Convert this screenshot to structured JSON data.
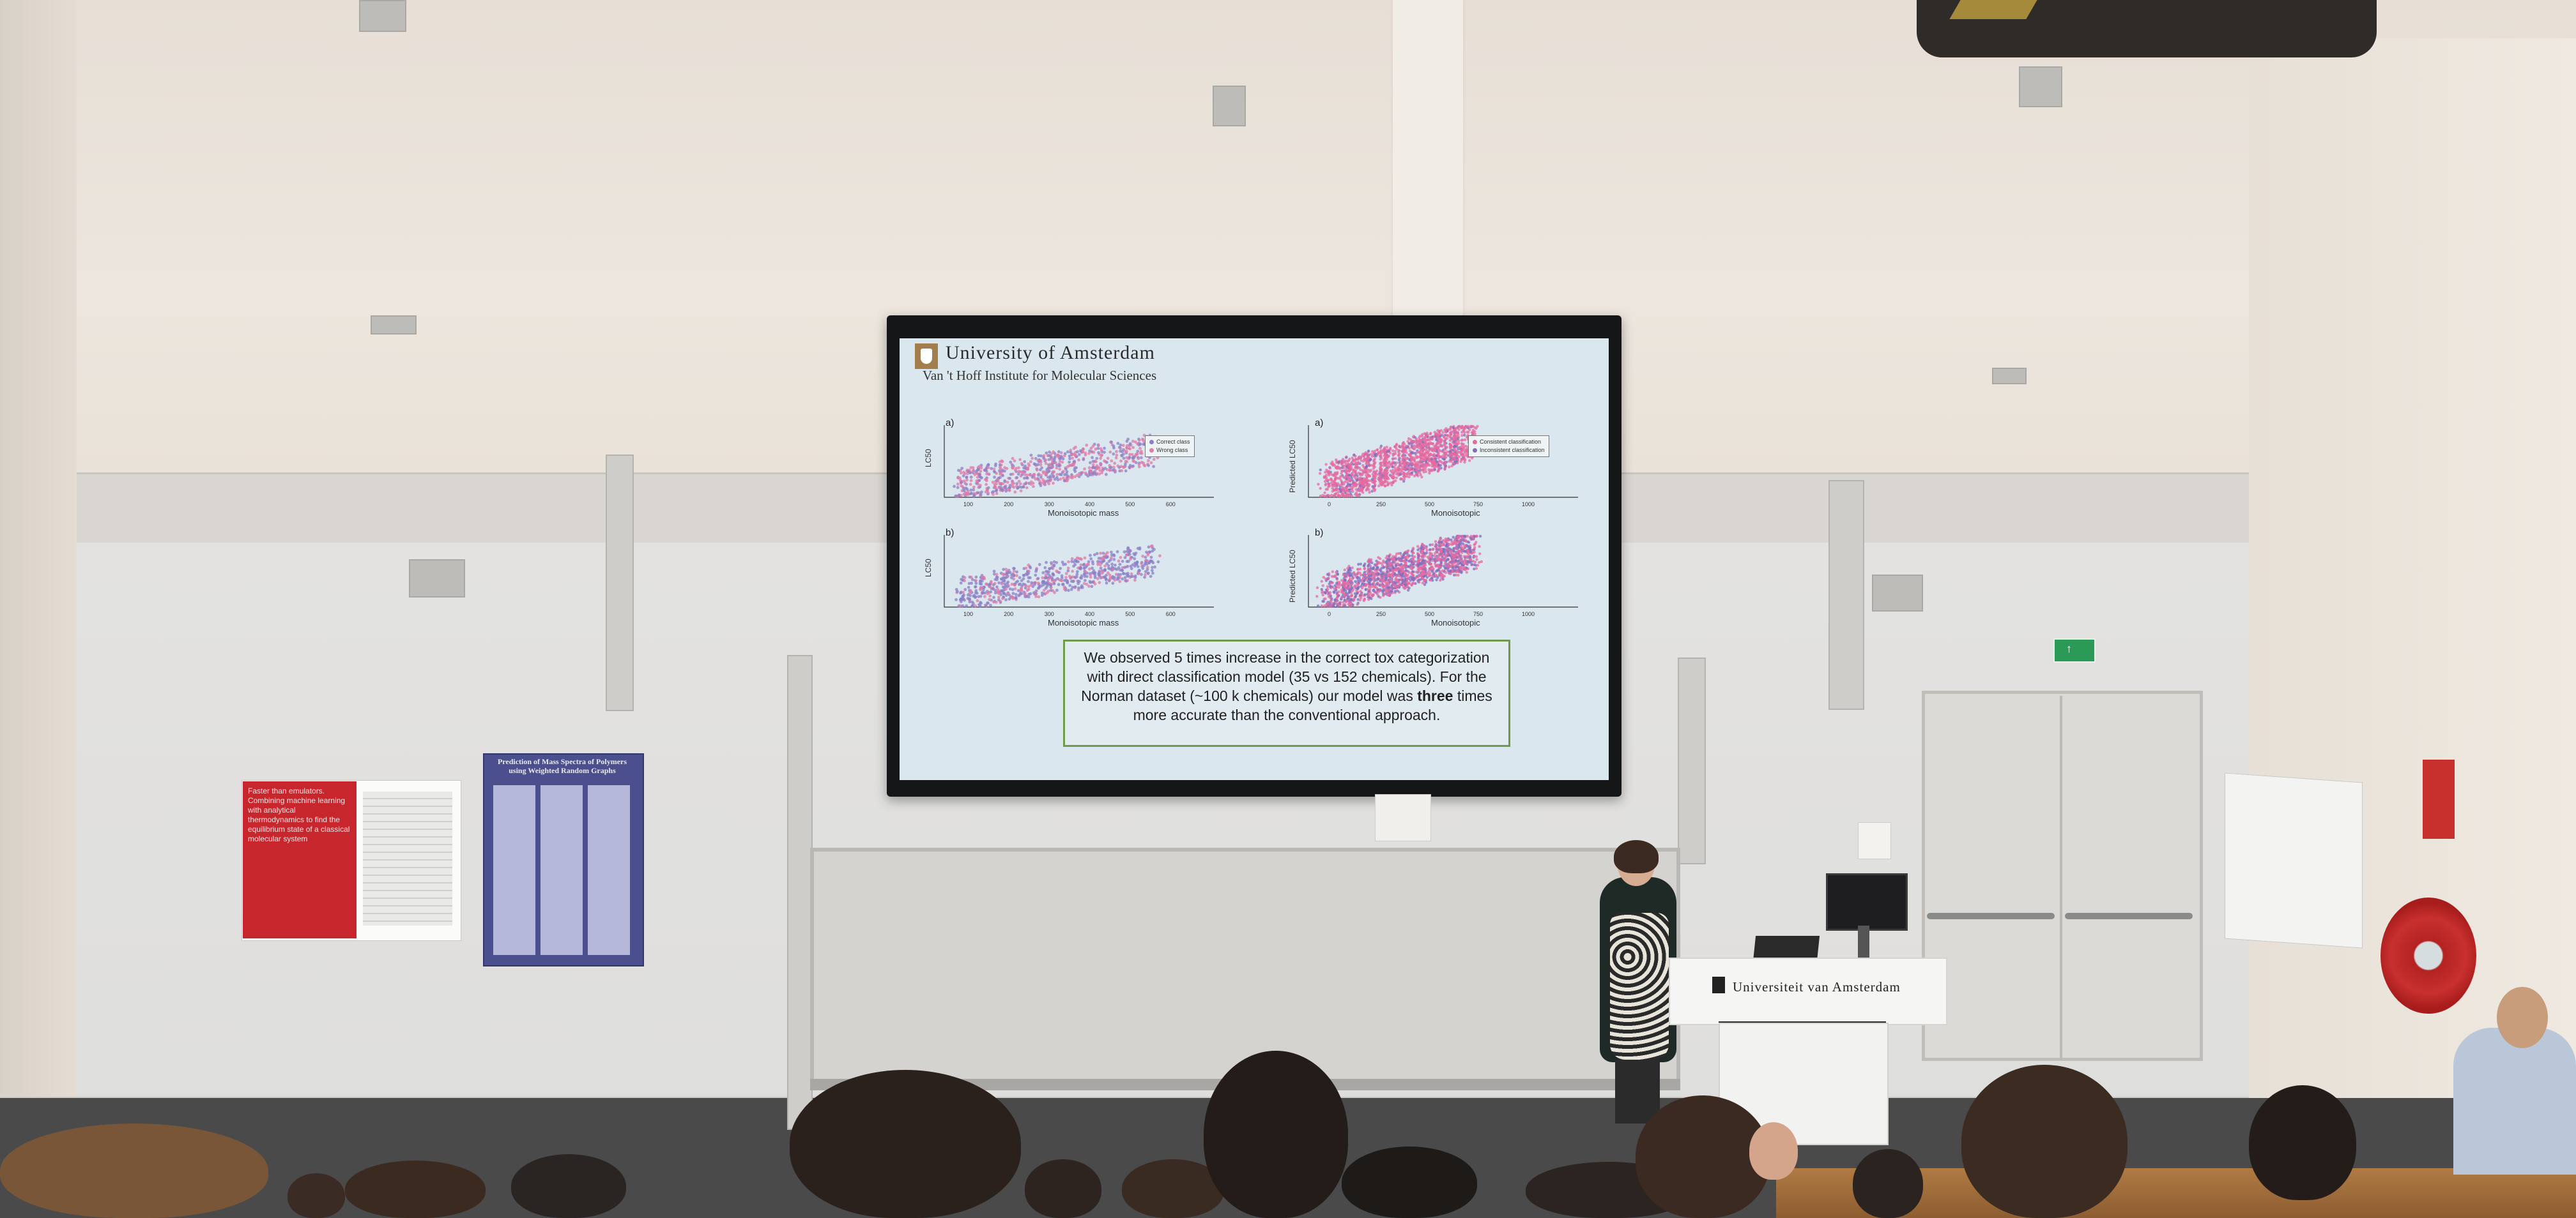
{
  "slide": {
    "institution": "University of Amsterdam",
    "institute": "Van 't Hoff Institute for Molecular Sciences",
    "panels": [
      {
        "letter": "a)",
        "ylabel": "LC50",
        "xlabel": "Monoisotopic mass",
        "legend": [
          "Correct class",
          "Wrong class"
        ],
        "ticks": [
          "100",
          "200",
          "300",
          "400",
          "500",
          "600"
        ]
      },
      {
        "letter": "a)",
        "ylabel": "Predicted LC50",
        "xlabel": "Monoisotopic",
        "legend": [
          "Consistent classification",
          "Inconsistent classification"
        ],
        "ticks": [
          "0",
          "250",
          "500",
          "750",
          "1000"
        ]
      },
      {
        "letter": "b)",
        "ylabel": "LC50",
        "xlabel": "Monoisotopic mass",
        "legend": [],
        "ticks": [
          "100",
          "200",
          "300",
          "400",
          "500",
          "600"
        ]
      },
      {
        "letter": "b)",
        "ylabel": "Predicted LC50",
        "xlabel": "Monoisotopic",
        "legend": [],
        "ticks": [
          "0",
          "250",
          "500",
          "750",
          "1000"
        ]
      }
    ],
    "conclusion": {
      "before_bold": "We observed 5 times increase in the correct tox categorization with direct classification model (35 vs 152 chemicals). For the Norman dataset (~100 k chemicals) our model was ",
      "bold": "three",
      "after_bold": " times more accurate than the conventional approach."
    },
    "colors": {
      "correct": "#8a7fc7",
      "wrong": "#e07aa6",
      "consistent": "#e46aa0",
      "inconsistent": "#7c6fc0"
    }
  },
  "lectern": {
    "label": "Universiteit van Amsterdam"
  },
  "poster_red": {
    "title": "Faster than emulators. Combining machine learning with analytical thermodynamics to find the equilibrium state of a classical molecular system"
  },
  "poster_blue": {
    "title": "Prediction of Mass Spectra of Polymers using Weighted Random Graphs"
  }
}
